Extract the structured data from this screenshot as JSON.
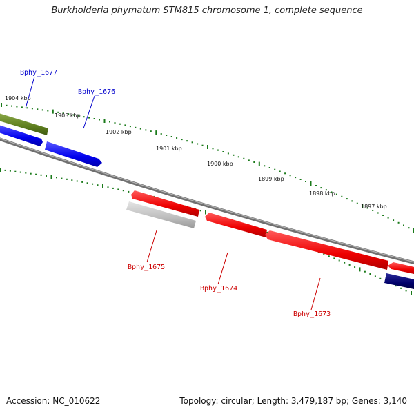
{
  "title": "Burkholderia phymatum STM815 chromosome 1, complete sequence",
  "footer": {
    "accession": "Accession: NC_010622",
    "genome_info": "Topology: circular; Length: 3,479,187 bp; Genes: 3,140"
  },
  "kbp_labels": [
    "1904 kbp",
    "1903 kbp",
    "1902 kbp",
    "1901 kbp",
    "1900 kbp",
    "1899 kbp",
    "1898 kbp",
    "1897 kbp"
  ],
  "gene_labels": {
    "bphy_1677": "Bphy_1677",
    "bphy_1676": "Bphy_1676",
    "bphy_1675": "Bphy_1675",
    "bphy_1674": "Bphy_1674",
    "bphy_1673": "Bphy_1673"
  },
  "colors": {
    "forward_strand_label": "#0000cc",
    "reverse_strand_label": "#cc0000",
    "gene_red": "#ee0000",
    "gene_blue": "#0000ee",
    "gene_olive": "#5f7f1f",
    "gene_gray": "#b8b8b8",
    "gene_navy": "#000066",
    "tick_green": "#1a7a1a",
    "backbone": "#808080"
  }
}
